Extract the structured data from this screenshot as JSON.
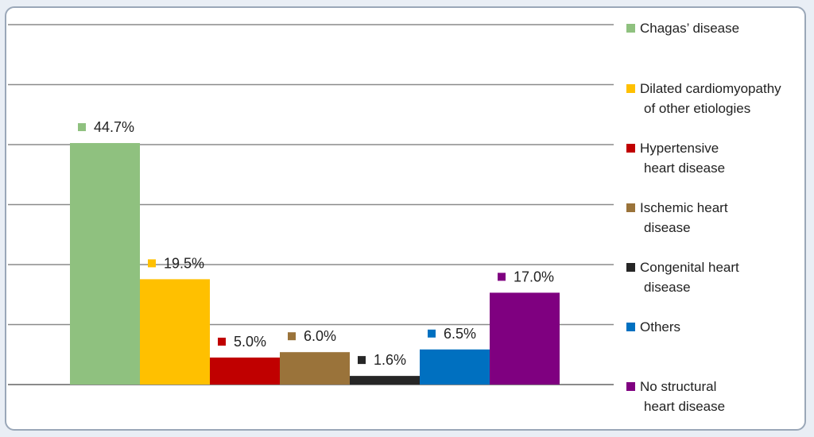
{
  "chart_data": {
    "type": "bar",
    "categories": [
      "Chagas’ disease",
      "Dilated cardiomyopathy of other etiologies",
      "Hypertensive heart disease",
      "Ischemic heart disease",
      "Congenital heart disease",
      "Others",
      "No structural heart disease"
    ],
    "values": [
      44.7,
      19.5,
      5.0,
      6.0,
      1.6,
      6.5,
      17.0
    ],
    "value_labels": [
      "44.7%",
      "19.5%",
      "5.0%",
      "6.0%",
      "1.6%",
      "6.5%",
      "17.0%"
    ],
    "colors": [
      "#8fc17f",
      "#ffc000",
      "#c00000",
      "#9a733a",
      "#262626",
      "#0070c0",
      "#7f0080"
    ],
    "legend": [
      [
        "Chagas’ disease"
      ],
      [
        "Dilated cardiomyopathy",
        "of other etiologies"
      ],
      [
        "Hypertensive",
        "heart disease"
      ],
      [
        "Ischemic heart",
        "disease"
      ],
      [
        "Congenital heart",
        "disease"
      ],
      [
        "Others"
      ],
      [
        "No structural",
        "heart disease"
      ]
    ],
    "ylim": [
      0,
      45
    ],
    "grid": true,
    "legend_placement": "right"
  }
}
